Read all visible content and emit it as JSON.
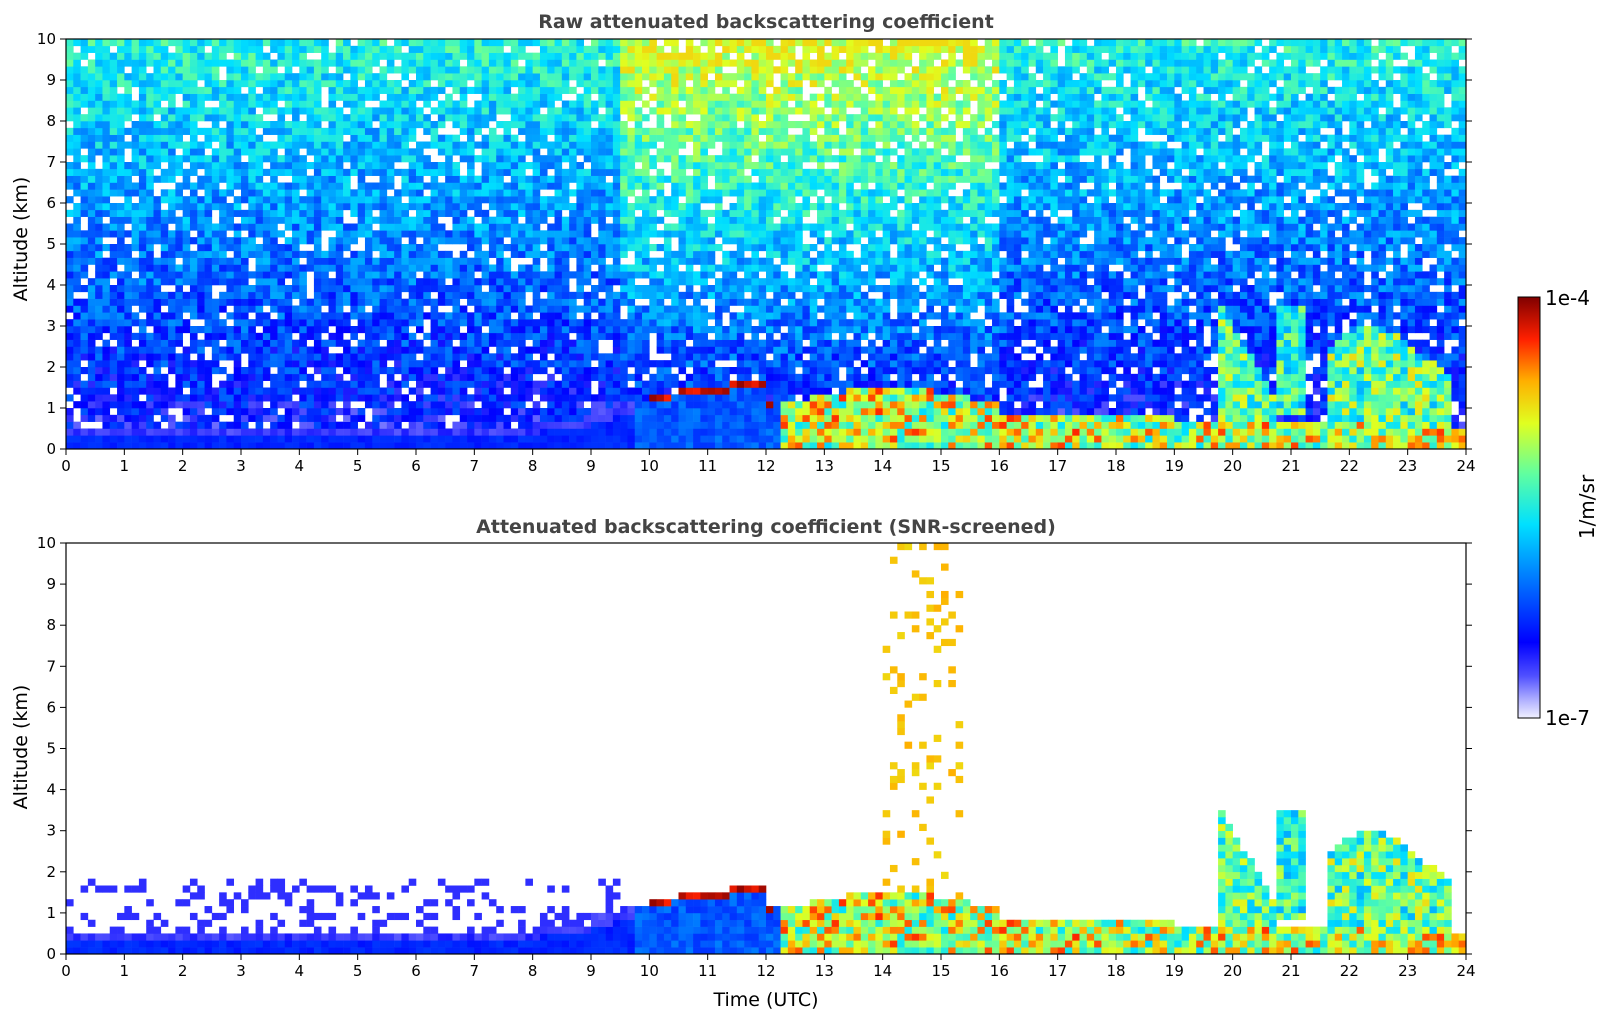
{
  "chart_data": [
    {
      "type": "heatmap",
      "title": "Raw attenuated backscattering coefficient",
      "xlabel": "",
      "ylabel": "Altitude (km)",
      "xlim": [
        0,
        24
      ],
      "ylim": [
        0,
        10
      ],
      "xticks": [
        "0",
        "1",
        "2",
        "3",
        "4",
        "5",
        "6",
        "7",
        "8",
        "9",
        "10",
        "11",
        "12",
        "13",
        "14",
        "15",
        "16",
        "17",
        "18",
        "19",
        "20",
        "21",
        "22",
        "23",
        "24"
      ],
      "yticks": [
        "0",
        "1",
        "2",
        "3",
        "4",
        "5",
        "6",
        "7",
        "8",
        "9",
        "10"
      ],
      "screened": false
    },
    {
      "type": "heatmap",
      "title": "Attenuated backscattering coefficient (SNR-screened)",
      "xlabel": "Time (UTC)",
      "ylabel": "Altitude (km)",
      "xlim": [
        0,
        24
      ],
      "ylim": [
        0,
        10
      ],
      "xticks": [
        "0",
        "1",
        "2",
        "3",
        "4",
        "5",
        "6",
        "7",
        "8",
        "9",
        "10",
        "11",
        "12",
        "13",
        "14",
        "15",
        "16",
        "17",
        "18",
        "19",
        "20",
        "21",
        "22",
        "23",
        "24"
      ],
      "yticks": [
        "0",
        "1",
        "2",
        "3",
        "4",
        "5",
        "6",
        "7",
        "8",
        "9",
        "10"
      ],
      "screened": true
    }
  ],
  "colorbar": {
    "label": "1/m/sr",
    "max_label": "1e-4",
    "min_label": "1e-7",
    "scale": "log",
    "colormap": "jet",
    "colors": [
      "#ffffff",
      "#c8c8ff",
      "#7f7fff",
      "#0000ff",
      "#0080ff",
      "#00ffff",
      "#80ff80",
      "#ffff00",
      "#ff8000",
      "#ff0000",
      "#800000"
    ]
  }
}
